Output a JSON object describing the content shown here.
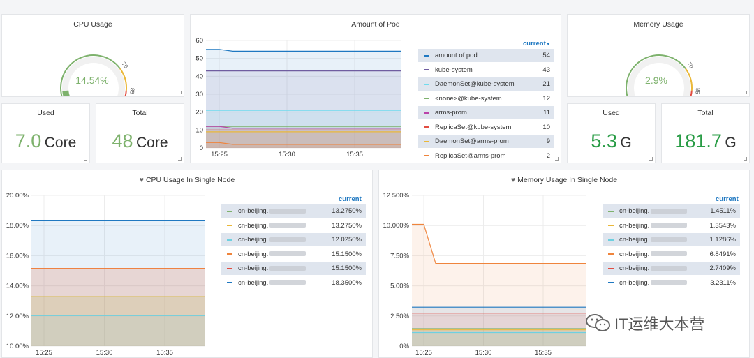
{
  "cpu_gauge": {
    "title": "CPU Usage",
    "value": 14.54,
    "value_text": "14.54%",
    "thresholds": [
      "0",
      "70",
      "85",
      "100"
    ],
    "color": "#7eb26d"
  },
  "mem_gauge": {
    "title": "Memory Usage",
    "value": 2.9,
    "value_text": "2.9%",
    "thresholds": [
      "0",
      "70",
      "85",
      "100"
    ],
    "color": "#7eb26d"
  },
  "cpu_used": {
    "label": "Used",
    "value": "7.0",
    "unit": "Core"
  },
  "cpu_total": {
    "label": "Total",
    "value": "48",
    "unit": "Core"
  },
  "mem_used": {
    "label": "Used",
    "value": "5.3",
    "unit": "G"
  },
  "mem_total": {
    "label": "Total",
    "value": "181.7",
    "unit": "G"
  },
  "colors": {
    "light_green": "#7eb26d",
    "dark_green": "#299c46",
    "accent_blue": "#1f78c1"
  },
  "pod_panel": {
    "title": "Amount of Pod",
    "current_label": "current",
    "sort_icon": "caret-down-icon",
    "legend": [
      {
        "name": "amount of pod",
        "value": "54",
        "color": "#1f78c1"
      },
      {
        "name": "kube-system",
        "value": "43",
        "color": "#705da0"
      },
      {
        "name": "DaemonSet@kube-system",
        "value": "21",
        "color": "#70dbed"
      },
      {
        "name": "<none>@kube-system",
        "value": "12",
        "color": "#7eb26d"
      },
      {
        "name": "arms-prom",
        "value": "11",
        "color": "#ba43a9"
      },
      {
        "name": "ReplicaSet@kube-system",
        "value": "10",
        "color": "#e24d42"
      },
      {
        "name": "DaemonSet@arms-prom",
        "value": "9",
        "color": "#eab839"
      },
      {
        "name": "ReplicaSet@arms-prom",
        "value": "2",
        "color": "#ef843c"
      }
    ]
  },
  "cpu_node_panel": {
    "title": "CPU Usage In Single Node",
    "heart_icon": "heart-icon",
    "current_label": "current",
    "legend": [
      {
        "name": "cn-beijing.",
        "value": "13.2750%",
        "color": "#7eb26d"
      },
      {
        "name": "cn-beijing.",
        "value": "13.2750%",
        "color": "#eab839"
      },
      {
        "name": "cn-beijing.",
        "value": "12.0250%",
        "color": "#6ed0e0"
      },
      {
        "name": "cn-beijing.",
        "value": "15.1500%",
        "color": "#ef843c"
      },
      {
        "name": "cn-beijing.",
        "value": "15.1500%",
        "color": "#e24d42"
      },
      {
        "name": "cn-beijing.",
        "value": "18.3500%",
        "color": "#1f78c1"
      }
    ]
  },
  "mem_node_panel": {
    "title": "Memory Usage In Single Node",
    "heart_icon": "heart-icon",
    "current_label": "current",
    "legend": [
      {
        "name": "cn-beijing.",
        "value": "1.4511%",
        "color": "#7eb26d"
      },
      {
        "name": "cn-beijing.",
        "value": "1.3543%",
        "color": "#eab839"
      },
      {
        "name": "cn-beijing.",
        "value": "1.1286%",
        "color": "#6ed0e0"
      },
      {
        "name": "cn-beijing.",
        "value": "6.8491%",
        "color": "#ef843c"
      },
      {
        "name": "cn-beijing.",
        "value": "2.7409%",
        "color": "#e24d42"
      },
      {
        "name": "cn-beijing.",
        "value": "3.2311%",
        "color": "#1f78c1"
      }
    ]
  },
  "watermark": {
    "text": "IT运维大本营",
    "icon": "wechat-icon"
  },
  "chart_data": [
    {
      "type": "area",
      "title": "Amount of Pod",
      "x": [
        "15:21",
        "15:25",
        "15:26",
        "15:30",
        "15:35",
        "15:40"
      ],
      "xticks": [
        "15:25",
        "15:30",
        "15:35"
      ],
      "ylim": [
        0,
        60
      ],
      "yticks": [
        "0",
        "10",
        "20",
        "30",
        "40",
        "50",
        "60"
      ],
      "series": [
        {
          "name": "amount of pod",
          "color": "#1f78c1",
          "values": [
            55,
            55,
            54,
            54,
            54,
            54
          ]
        },
        {
          "name": "kube-system",
          "color": "#705da0",
          "values": [
            43,
            43,
            43,
            43,
            43,
            43
          ]
        },
        {
          "name": "DaemonSet@kube-system",
          "color": "#70dbed",
          "values": [
            21,
            21,
            21,
            21,
            21,
            21
          ]
        },
        {
          "name": "<none>@kube-system",
          "color": "#7eb26d",
          "values": [
            12,
            12,
            12,
            12,
            12,
            12
          ]
        },
        {
          "name": "arms-prom",
          "color": "#ba43a9",
          "values": [
            12,
            12,
            11,
            11,
            11,
            11
          ]
        },
        {
          "name": "ReplicaSet@kube-system",
          "color": "#e24d42",
          "values": [
            10,
            10,
            10,
            10,
            10,
            10
          ]
        },
        {
          "name": "DaemonSet@arms-prom",
          "color": "#eab839",
          "values": [
            9,
            9,
            9,
            9,
            9,
            9
          ]
        },
        {
          "name": "ReplicaSet@arms-prom",
          "color": "#ef843c",
          "values": [
            3,
            3,
            2,
            2,
            2,
            2
          ]
        }
      ]
    },
    {
      "type": "area",
      "title": "CPU Usage In Single Node",
      "x": [
        "15:21",
        "15:25",
        "15:30",
        "15:35",
        "15:40"
      ],
      "xticks": [
        "15:25",
        "15:30",
        "15:35"
      ],
      "ylim": [
        10,
        20
      ],
      "yticks": [
        "10.00%",
        "12.00%",
        "14.00%",
        "16.00%",
        "18.00%",
        "20.00%"
      ],
      "series": [
        {
          "name": "cn-beijing.",
          "color": "#1f78c1",
          "values": [
            18.35,
            18.35,
            18.35,
            18.35,
            18.35
          ]
        },
        {
          "name": "cn-beijing.",
          "color": "#e24d42",
          "values": [
            15.15,
            15.15,
            15.15,
            15.15,
            15.15
          ]
        },
        {
          "name": "cn-beijing.",
          "color": "#ef843c",
          "values": [
            15.15,
            15.15,
            15.15,
            15.15,
            15.15
          ]
        },
        {
          "name": "cn-beijing.",
          "color": "#7eb26d",
          "values": [
            13.275,
            13.275,
            13.275,
            13.275,
            13.275
          ]
        },
        {
          "name": "cn-beijing.",
          "color": "#eab839",
          "values": [
            13.275,
            13.275,
            13.275,
            13.275,
            13.275
          ]
        },
        {
          "name": "cn-beijing.",
          "color": "#6ed0e0",
          "values": [
            12.025,
            12.025,
            12.025,
            12.025,
            12.025
          ]
        }
      ]
    },
    {
      "type": "area",
      "title": "Memory Usage In Single Node",
      "x": [
        "15:21",
        "15:25",
        "15:26",
        "15:30",
        "15:35",
        "15:40"
      ],
      "xticks": [
        "15:25",
        "15:30",
        "15:35"
      ],
      "ylim": [
        0,
        12.5
      ],
      "yticks": [
        "0%",
        "2.50%",
        "5.00%",
        "7.50%",
        "10.000%",
        "12.500%"
      ],
      "series": [
        {
          "name": "cn-beijing.",
          "color": "#ef843c",
          "values": [
            10.1,
            10.1,
            6.85,
            6.85,
            6.85,
            6.85
          ]
        },
        {
          "name": "cn-beijing.",
          "color": "#1f78c1",
          "values": [
            3.23,
            3.23,
            3.23,
            3.23,
            3.23,
            3.23
          ]
        },
        {
          "name": "cn-beijing.",
          "color": "#e24d42",
          "values": [
            2.74,
            2.74,
            2.74,
            2.74,
            2.74,
            2.74
          ]
        },
        {
          "name": "cn-beijing.",
          "color": "#7eb26d",
          "values": [
            1.45,
            1.45,
            1.45,
            1.45,
            1.45,
            1.45
          ]
        },
        {
          "name": "cn-beijing.",
          "color": "#eab839",
          "values": [
            1.35,
            1.35,
            1.35,
            1.35,
            1.35,
            1.35
          ]
        },
        {
          "name": "cn-beijing.",
          "color": "#6ed0e0",
          "values": [
            1.13,
            1.13,
            1.13,
            1.13,
            1.13,
            1.13
          ]
        }
      ]
    }
  ]
}
